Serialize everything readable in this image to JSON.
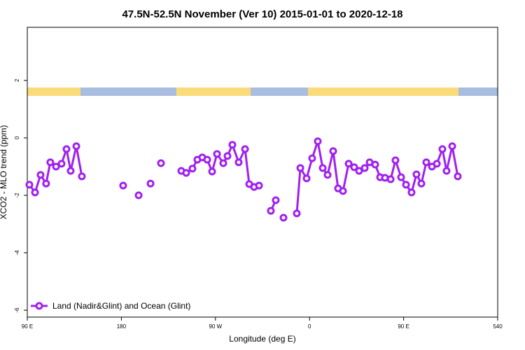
{
  "chart_data": {
    "type": "line",
    "title": "47.5N-52.5N November (Ver 10)   2015-01-01 to 2020-12-18",
    "x_label": "Longitude (deg E)",
    "y_label": "XCO2 - MLO trend (ppm)",
    "legend": "bottom-left",
    "xlim": [
      90,
      540
    ],
    "ylim": [
      -6.24,
      3.85
    ],
    "xticks": [
      {
        "value": 90,
        "label": "90 E"
      },
      180,
      {
        "value": 270,
        "label": "90 W"
      },
      {
        "value": 360,
        "label": "0"
      },
      {
        "value": 450,
        "label": "90 E"
      },
      540
    ],
    "yticks": [
      -6,
      -4,
      -2,
      0,
      2
    ],
    "series": [
      {
        "name": "Land (Nadir&Glint) and Ocean (Glint)",
        "color": "#a020f0",
        "x": [
          92,
          97.4,
          102.7,
          108,
          112,
          117.5,
          122.8,
          127.5,
          131.5,
          136.9,
          142.2,
          null,
          181.7,
          null,
          196.5,
          null,
          207.9,
          null,
          217.9,
          null,
          237.3,
          242,
          248,
          252.7,
          257.4,
          262.1,
          266.8,
          271.5,
          277.5,
          281.5,
          286.2,
          292.2,
          298.3,
          302.3,
          307,
          311.7,
          null,
          323,
          327.7,
          null,
          335.1,
          null,
          347.8,
          351.2,
          357.2,
          362.5,
          367.9,
          372.6,
          377.3,
          382.6,
          387.3,
          392,
          397.4,
          402.7,
          407.4,
          412.8,
          417.5,
          422.8,
          427.5,
          432.2,
          437.6,
          442.2,
          447.6,
          452.3,
          457.6,
          462.3,
          467,
          471.7,
          477.1,
          481.8,
          487.1,
          491.1,
          496.5,
          501.8
        ],
        "values": [
          -1.63,
          -1.9,
          -1.29,
          -1.59,
          -0.85,
          -1.0,
          -0.9,
          -0.39,
          -1.15,
          -0.29,
          -1.34,
          null,
          -1.66,
          null,
          -2.0,
          null,
          -1.59,
          null,
          -0.88,
          null,
          -1.15,
          -1.22,
          -1.07,
          -0.76,
          -0.68,
          -0.76,
          -1.17,
          -0.56,
          -0.88,
          -0.63,
          -0.24,
          -0.85,
          -0.39,
          -1.61,
          -1.71,
          -1.66,
          null,
          -2.54,
          -2.17,
          null,
          -2.78,
          null,
          -2.63,
          -1.05,
          -1.41,
          -0.71,
          -0.12,
          -1.05,
          -1.29,
          -0.46,
          -1.76,
          -1.85,
          -0.9,
          -1.02,
          -1.15,
          -1.05,
          -0.85,
          -0.93,
          -1.37,
          -1.39,
          -1.44,
          -0.78,
          -1.37,
          -1.63,
          -1.9,
          -1.27,
          -1.59,
          -0.85,
          -1.0,
          -0.9,
          -0.39,
          -1.15,
          -0.29,
          -1.34
        ]
      }
    ]
  }
}
